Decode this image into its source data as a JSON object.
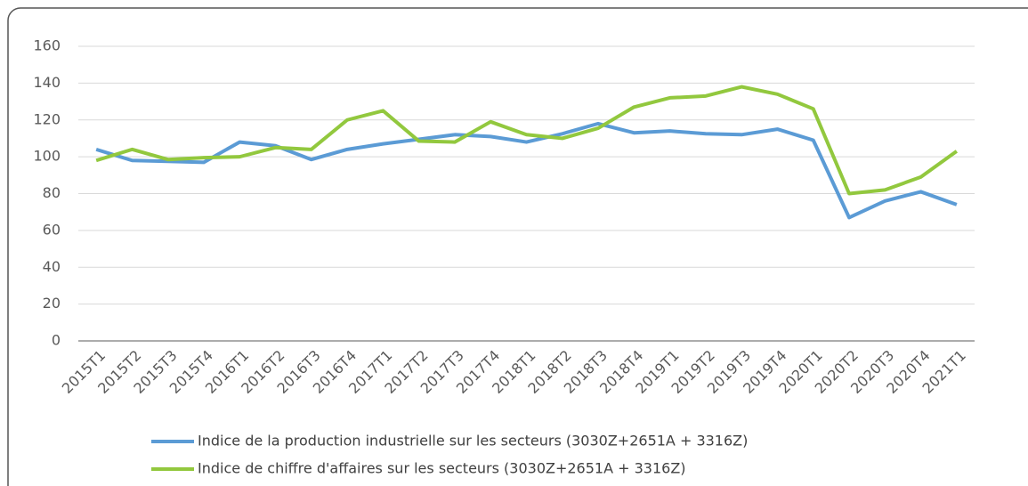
{
  "chart_data": {
    "type": "line",
    "categories": [
      "2015T1",
      "2015T2",
      "2015T3",
      "2015T4",
      "2016T1",
      "2016T2",
      "2016T3",
      "2016T4",
      "2017T1",
      "2017T2",
      "2017T3",
      "2017T4",
      "2018T1",
      "2018T2",
      "2018T3",
      "2018T4",
      "2019T1",
      "2019T2",
      "2019T3",
      "2019T4",
      "2020T1",
      "2020T2",
      "2020T3",
      "2020T4",
      "2021T1"
    ],
    "series": [
      {
        "name": "Indice de la production industrielle sur les secteurs (3030Z+2651A + 3316Z)",
        "color": "#5b9bd5",
        "values": [
          104,
          98,
          97.5,
          97,
          108,
          106,
          98.5,
          104,
          107,
          109.5,
          112,
          111,
          108,
          112.5,
          118,
          113,
          114,
          112.5,
          112,
          115,
          109,
          67,
          76,
          81,
          74
        ]
      },
      {
        "name": "Indice de chiffre d'affaires sur les secteurs (3030Z+2651A + 3316Z)",
        "color": "#92c83e",
        "values": [
          98,
          104,
          98.5,
          99.5,
          100,
          105,
          104,
          120,
          125,
          108.5,
          108,
          119,
          112,
          110,
          115.5,
          127,
          132,
          133,
          138,
          134,
          126,
          80,
          82,
          89,
          103
        ]
      }
    ],
    "ylim": [
      0,
      160
    ],
    "yticks": [
      0,
      20,
      40,
      60,
      80,
      100,
      120,
      140,
      160
    ],
    "grid": true
  }
}
